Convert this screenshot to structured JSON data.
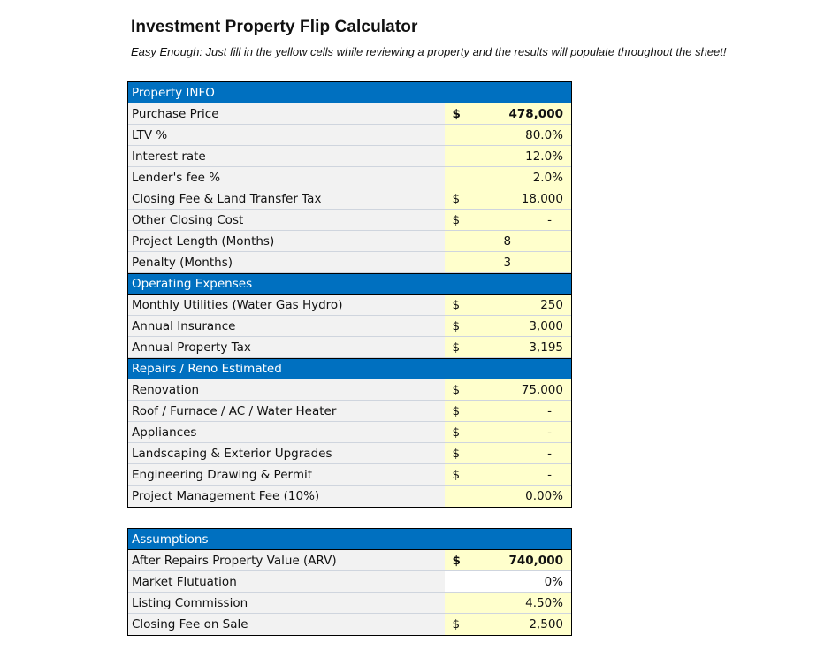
{
  "title": "Investment Property Flip Calculator",
  "subtitle": "Easy Enough: Just fill in the yellow cells while reviewing a property and the results will populate throughout the sheet!",
  "property_info": {
    "header": "Property INFO",
    "rows": [
      {
        "label": "Purchase Price",
        "symbol": "$",
        "value": "478,000",
        "bold": true
      },
      {
        "label": "LTV %",
        "symbol": "",
        "value": "80.0%"
      },
      {
        "label": "Interest rate",
        "symbol": "",
        "value": "12.0%"
      },
      {
        "label": "Lender's fee %",
        "symbol": "",
        "value": "2.0%"
      },
      {
        "label": "Closing Fee & Land Transfer Tax",
        "symbol": "$",
        "value": "18,000"
      },
      {
        "label": "Other Closing Cost",
        "symbol": "$",
        "value": "-"
      },
      {
        "label": "Project Length (Months)",
        "symbol": "",
        "value": "8"
      },
      {
        "label": "Penalty (Months)",
        "symbol": "",
        "value": "3"
      }
    ]
  },
  "operating_expenses": {
    "header": "Operating Expenses",
    "rows": [
      {
        "label": "Monthly Utilities (Water Gas Hydro)",
        "symbol": "$",
        "value": "250"
      },
      {
        "label": "Annual Insurance",
        "symbol": "$",
        "value": "3,000"
      },
      {
        "label": "Annual Property Tax",
        "symbol": "$",
        "value": "3,195"
      }
    ]
  },
  "repairs": {
    "header": "Repairs / Reno Estimated",
    "rows": [
      {
        "label": "Renovation",
        "symbol": "$",
        "value": "75,000"
      },
      {
        "label": "Roof / Furnace / AC / Water Heater",
        "symbol": "$",
        "value": "-"
      },
      {
        "label": "Appliances",
        "symbol": "$",
        "value": "-"
      },
      {
        "label": "Landscaping & Exterior Upgrades",
        "symbol": "$",
        "value": "-"
      },
      {
        "label": "Engineering Drawing & Permit",
        "symbol": "$",
        "value": "-"
      },
      {
        "label": "Project Management Fee (10%)",
        "symbol": "",
        "value": "0.00%"
      }
    ]
  },
  "assumptions": {
    "header": "Assumptions",
    "rows": [
      {
        "label": "After Repairs Property Value (ARV)",
        "symbol": "$",
        "value": "740,000",
        "bold": true
      },
      {
        "label": "Market Flutuation",
        "symbol": "",
        "value": "0%"
      },
      {
        "label": "Listing Commission",
        "symbol": "",
        "value": "4.50%"
      },
      {
        "label": "Closing Fee on Sale",
        "symbol": "$",
        "value": "2,500"
      }
    ]
  }
}
